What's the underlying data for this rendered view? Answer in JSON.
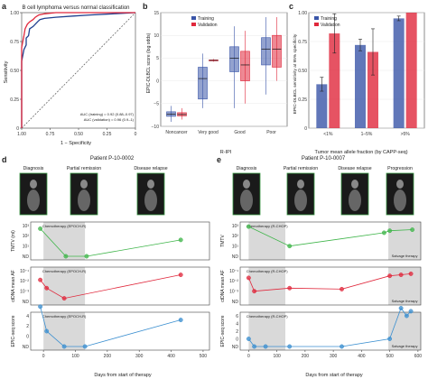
{
  "panel_labels": [
    "a",
    "b",
    "c",
    "d",
    "e"
  ],
  "chart_data": [
    {
      "panel": "a",
      "type": "line",
      "title": "B cell lymphoma versus normal classification",
      "xlabel": "1 − Specificity",
      "ylabel": "Sensitivity",
      "x_ticks": [
        "1.00",
        "0.75",
        "0.50",
        "0.25",
        "0"
      ],
      "y_ticks": [
        "0",
        "0.25",
        "0.50",
        "0.75",
        "1.00"
      ],
      "xlim": [
        1.0,
        0.0
      ],
      "ylim": [
        0.0,
        1.0
      ],
      "series": [
        {
          "name": "AUC (training) = 0.92 (0.88–0.97)",
          "color": "#1f3f8f",
          "x": [
            1.0,
            1.0,
            0.98,
            0.96,
            0.96,
            0.94,
            0.93,
            0.9,
            0.88,
            0.86,
            0.84,
            0.8,
            0.7,
            0.55,
            0.4,
            0.2,
            0.0
          ],
          "y": [
            0.0,
            0.58,
            0.68,
            0.72,
            0.78,
            0.8,
            0.86,
            0.88,
            0.9,
            0.92,
            0.94,
            0.95,
            0.96,
            0.97,
            0.98,
            0.99,
            1.0
          ]
        },
        {
          "name": "AUC (validation) = 0.96 (0.9–1)",
          "color": "#e0283c",
          "x": [
            1.0,
            1.0,
            0.98,
            0.97,
            0.95,
            0.93,
            0.9,
            0.88,
            0.85,
            0.8,
            0.7,
            0.5,
            0.0
          ],
          "y": [
            0.0,
            0.7,
            0.8,
            0.86,
            0.9,
            0.92,
            0.94,
            0.96,
            0.98,
            0.99,
            1.0,
            1.0,
            1.0
          ]
        }
      ],
      "reference_line": "diagonal"
    },
    {
      "panel": "b",
      "type": "box",
      "ylabel": "EPIC-DLBCL score (log odds)",
      "xlabel": "R-IPI",
      "categories": [
        "Noncancer",
        "Very good",
        "Good",
        "Poor"
      ],
      "y_ticks": [
        "−10",
        "−5",
        "0",
        "5",
        "10",
        "15"
      ],
      "ylim": [
        -10,
        15
      ],
      "legend": [
        "Training",
        "Validation"
      ],
      "series": [
        {
          "name": "Training",
          "color": "#3a55a8",
          "boxes": [
            [
              -9.0,
              -7.8,
              -7.3,
              -6.8,
              -5.5
            ],
            [
              -6,
              -4,
              0.5,
              3,
              6
            ],
            [
              -6,
              2,
              5,
              7.5,
              12
            ],
            [
              -3,
              3.5,
              7,
              9.5,
              14
            ]
          ]
        },
        {
          "name": "Validation",
          "color": "#e0283c",
          "boxes": [
            [
              -8.5,
              -7.7,
              -7.4,
              -7.0,
              -6.0
            ],
            [
              4.2,
              4.4,
              4.5,
              4.6,
              4.8
            ],
            [
              -5,
              0,
              3.5,
              6.5,
              11
            ],
            [
              0,
              3,
              7,
              10,
              14
            ]
          ]
        }
      ]
    },
    {
      "panel": "c",
      "type": "bar",
      "ylabel": "EPIC-DLBCL sensitivity at 95% specificity",
      "xlabel": "Tumor mean allele fraction (by CAPP-seq)",
      "categories": [
        "<1%",
        "1–5%",
        ">5%"
      ],
      "y_ticks": [
        "0",
        "0.25",
        "0.50",
        "0.75",
        "1.00"
      ],
      "ylim": [
        0,
        1.0
      ],
      "legend": [
        "Training",
        "Validation"
      ],
      "series": [
        {
          "name": "Training",
          "color": "#3a55a8",
          "values": [
            0.38,
            0.72,
            0.95
          ],
          "err": [
            0.06,
            0.05,
            0.02
          ]
        },
        {
          "name": "Validation",
          "color": "#e0283c",
          "values": [
            0.82,
            0.66,
            1.0
          ],
          "err": [
            0.17,
            0.2,
            0.0
          ]
        }
      ]
    },
    {
      "panel": "d",
      "type": "line",
      "title": "Patient P-10-0002",
      "images": [
        "Diagnosis",
        "Partial remission",
        "Disease relapse"
      ],
      "therapy_label": "Chemotherapy (EPOCH-R)",
      "xlabel": "Days from start of therapy",
      "x_ticks": [
        "0",
        "100",
        "200",
        "300",
        "400",
        "500"
      ],
      "xlim": [
        -40,
        520
      ],
      "therapy_range": [
        0,
        130
      ],
      "subplots": [
        {
          "ylabel": "TMTV (ml)",
          "color": "#3fb54a",
          "y_ticks": [
            "ND",
            "10¹",
            "10²",
            "10³"
          ],
          "x": [
            -10,
            70,
            135,
            430
          ],
          "y": [
            2.7,
            0.0,
            0.0,
            1.6
          ]
        },
        {
          "ylabel": "ctDNA mean AF",
          "color": "#e0283c",
          "y_ticks": [
            "ND",
            "10⁻³",
            "10⁻²",
            "10⁻¹"
          ],
          "x": [
            -10,
            10,
            65,
            430
          ],
          "y": [
            2.1,
            1.3,
            0.3,
            2.6
          ]
        },
        {
          "ylabel": "EPIC-seq score",
          "color": "#3b8fd0",
          "y_ticks": [
            "ND",
            "0",
            "2",
            "4"
          ],
          "x": [
            -10,
            10,
            65,
            130,
            430
          ],
          "y": [
            3.9,
            1.5,
            0.0,
            0.0,
            2.6
          ]
        }
      ]
    },
    {
      "panel": "e",
      "type": "line",
      "title": "Patient P-10-0007",
      "images": [
        "Diagnosis",
        "Partial remission",
        "Disease relapse",
        "Progression"
      ],
      "therapy_label": "Chemotherapy (R-CHOP)",
      "salvage_label": "Salvage therapy",
      "xlabel": "Days from start of therapy",
      "x_ticks": [
        "0",
        "100",
        "200",
        "300",
        "400",
        "500",
        "600"
      ],
      "xlim": [
        -30,
        610
      ],
      "therapy_range": [
        0,
        130
      ],
      "salvage_range": [
        495,
        610
      ],
      "subplots": [
        {
          "ylabel": "TMTV",
          "color": "#3fb54a",
          "y_ticks": [
            "ND",
            "10¹",
            "10²",
            "10³"
          ],
          "x": [
            0,
            145,
            480,
            500,
            580
          ],
          "y": [
            2.9,
            1.0,
            2.3,
            2.5,
            2.6
          ]
        },
        {
          "ylabel": "ctDNA mean AF",
          "color": "#e0283c",
          "y_ticks": [
            "ND",
            "10⁻³",
            "10⁻²",
            "10⁻¹"
          ],
          "x": [
            0,
            20,
            145,
            330,
            500,
            540,
            575
          ],
          "y": [
            2.3,
            1.0,
            1.3,
            1.2,
            2.5,
            2.6,
            2.7
          ]
        },
        {
          "ylabel": "EPIC-seq score",
          "color": "#3b8fd0",
          "y_ticks": [
            "ND",
            "0",
            "2",
            "4",
            "6"
          ],
          "x": [
            0,
            20,
            60,
            145,
            330,
            500,
            540,
            560,
            575
          ],
          "y": [
            1.0,
            0.0,
            0.0,
            0.0,
            0.0,
            1.0,
            5.0,
            4.0,
            4.6
          ]
        }
      ]
    }
  ]
}
